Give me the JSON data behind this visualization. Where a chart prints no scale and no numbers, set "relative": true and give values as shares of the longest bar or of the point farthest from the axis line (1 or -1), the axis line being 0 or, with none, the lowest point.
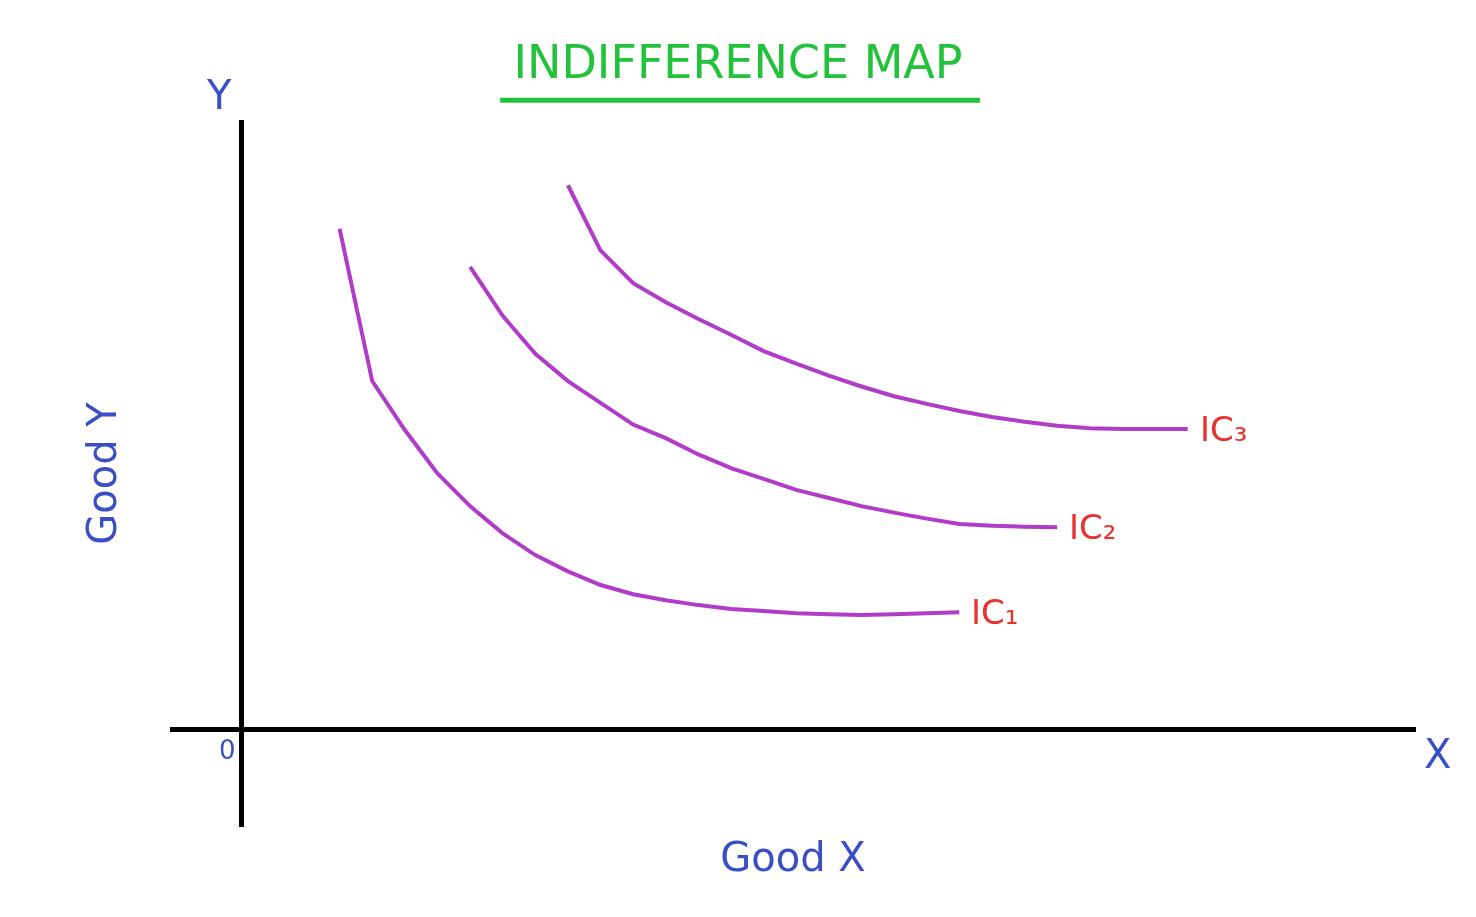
{
  "chart_data": {
    "type": "line",
    "title": "INDIFFERENCE MAP",
    "xlabel": "Good X",
    "ylabel": "Good Y",
    "relative": true,
    "legend": false,
    "marker": "none",
    "line_style": "solid",
    "annotations": [
      "Y",
      "X",
      "0"
    ],
    "categories": [
      null,
      null,
      null,
      null,
      null,
      null,
      null,
      null,
      null,
      null,
      null,
      null,
      null,
      null,
      null,
      null,
      null,
      null,
      null,
      null,
      null,
      null,
      null,
      null,
      null,
      null,
      null
    ],
    "series": [
      {
        "name": "IC₁",
        "color": "#b03cc8",
        "values": [
          0.92,
          0.64,
          0.55,
          0.47,
          0.41,
          0.36,
          0.32,
          0.29,
          0.265,
          0.248,
          0.237,
          0.228,
          0.221,
          0.217,
          0.213,
          0.211,
          0.21,
          0.211,
          0.213,
          0.215,
          null,
          null,
          null,
          null,
          null,
          null,
          null
        ]
      },
      {
        "name": "IC₂",
        "color": "#b03cc8",
        "values": [
          null,
          null,
          null,
          null,
          0.85,
          0.76,
          0.69,
          0.64,
          0.6,
          0.56,
          0.535,
          0.505,
          0.48,
          0.46,
          0.44,
          0.425,
          0.41,
          0.398,
          0.387,
          0.377,
          0.374,
          0.372,
          0.371,
          null,
          null,
          null,
          null
        ]
      },
      {
        "name": "IC₃",
        "color": "#b03cc8",
        "values": [
          null,
          null,
          null,
          null,
          null,
          null,
          null,
          1.0,
          0.88,
          0.82,
          0.785,
          0.754,
          0.725,
          0.695,
          0.672,
          0.65,
          0.63,
          0.612,
          0.598,
          0.585,
          0.574,
          0.565,
          0.558,
          0.553,
          0.552,
          0.552,
          0.552
        ]
      }
    ]
  }
}
